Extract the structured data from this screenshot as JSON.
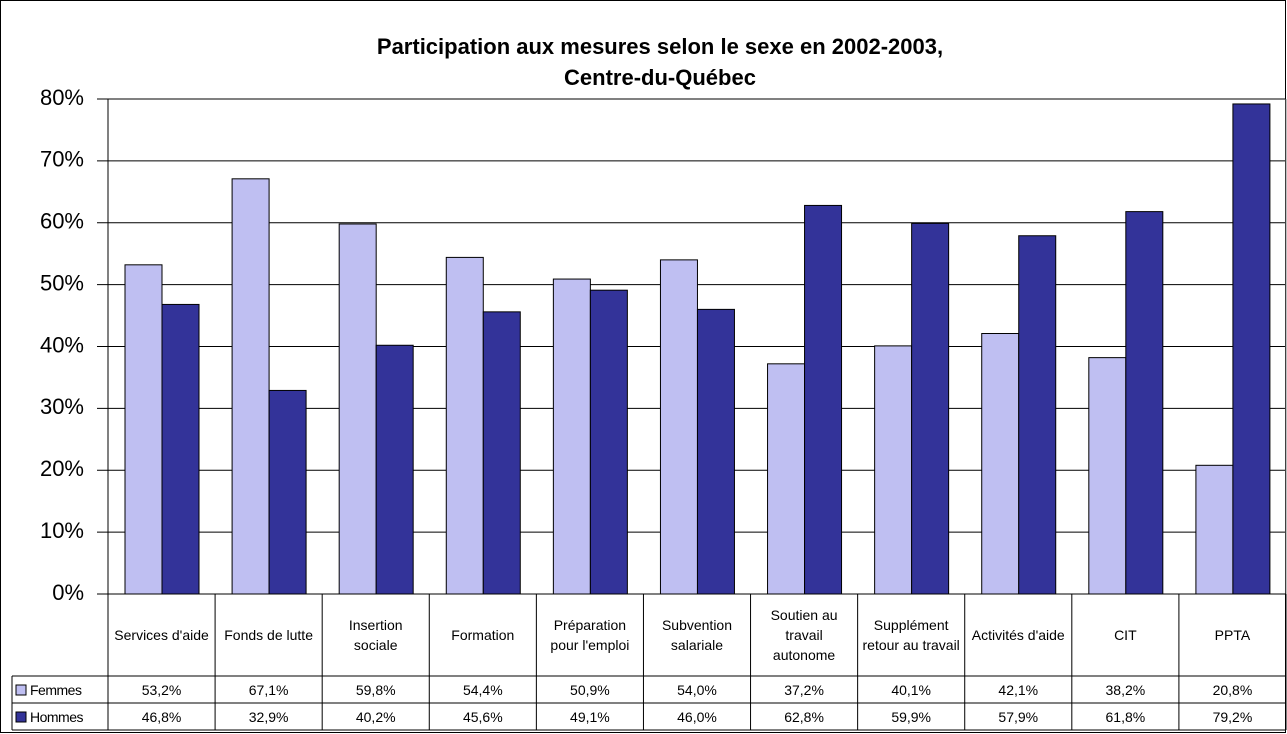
{
  "chart_data": {
    "type": "bar",
    "title": "Participation aux mesures selon le sexe en 2002-2003,",
    "subtitle": "Centre-du-Québec",
    "categories": [
      "Services d'aide",
      "Fonds de lutte",
      "Insertion sociale",
      "Formation",
      "Préparation pour l'emploi",
      "Subvention salariale",
      "Soutien au travail autonome",
      "Supplément retour au travail",
      "Activités d'aide",
      "CIT",
      "PPTA"
    ],
    "series": [
      {
        "name": "Femmes",
        "color": "#bfbff2",
        "values": [
          53.2,
          67.1,
          59.8,
          54.4,
          50.9,
          54.0,
          37.2,
          40.1,
          42.1,
          38.2,
          20.8
        ],
        "value_labels": [
          "53,2%",
          "67,1%",
          "59,8%",
          "54,4%",
          "50,9%",
          "54,0%",
          "37,2%",
          "40,1%",
          "42,1%",
          "38,2%",
          "20,8%"
        ]
      },
      {
        "name": "Hommes",
        "color": "#333399",
        "values": [
          46.8,
          32.9,
          40.2,
          45.6,
          49.1,
          46.0,
          62.8,
          59.9,
          57.9,
          61.8,
          79.2
        ],
        "value_labels": [
          "46,8%",
          "32,9%",
          "40,2%",
          "45,6%",
          "49,1%",
          "46,0%",
          "62,8%",
          "59,9%",
          "57,9%",
          "61,8%",
          "79,2%"
        ]
      }
    ],
    "ylim": [
      0,
      80
    ],
    "yticks": [
      {
        "value": 0,
        "label": "0%"
      },
      {
        "value": 10,
        "label": "10%"
      },
      {
        "value": 20,
        "label": "20%"
      },
      {
        "value": 30,
        "label": "30%"
      },
      {
        "value": 40,
        "label": "40%"
      },
      {
        "value": 50,
        "label": "50%"
      },
      {
        "value": 60,
        "label": "60%"
      },
      {
        "value": 70,
        "label": "70%"
      },
      {
        "value": 80,
        "label": "80%"
      }
    ],
    "grid": true
  }
}
